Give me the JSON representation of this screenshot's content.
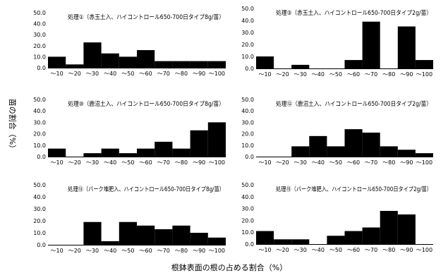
{
  "ylabel": "苗の割合（%）",
  "xlabel": "根鉢表面の根の占める割合（%）",
  "chart_data": [
    {
      "type": "bar",
      "title": "処理①（赤玉土入、ハイコントロール650-700日タイプ8g/苗）",
      "categories": [
        "～10",
        "～20",
        "～30",
        "～40",
        "～50",
        "～60",
        "～70",
        "～80",
        "～90",
        "～100"
      ],
      "values": [
        10,
        3,
        23,
        13,
        10,
        16,
        6,
        6,
        6,
        6
      ],
      "ylim": [
        0,
        50
      ],
      "yticks": [
        "0.0",
        "10.0",
        "20.0",
        "30.0",
        "40.0",
        "50.0"
      ]
    },
    {
      "type": "bar",
      "title": "処理③（赤玉土入、ハイコントロール650-700日タイプ2g/苗）",
      "categories": [
        "～10",
        "～20",
        "～30",
        "～40",
        "～50",
        "～60",
        "～70",
        "～80",
        "～90",
        "～100"
      ],
      "values": [
        10,
        0,
        3,
        0,
        0,
        7,
        39,
        0,
        35,
        7
      ],
      "ylim": [
        0,
        50
      ],
      "yticks": [
        "0.0",
        "10.0",
        "20.0",
        "30.0",
        "40.0",
        "50.0"
      ]
    },
    {
      "type": "bar",
      "title": "処理⑩（鹿沼土入、ハイコントロール650-700日タイプ8g/苗）",
      "categories": [
        "～10",
        "～20",
        "～30",
        "～40",
        "～50",
        "～60",
        "～70",
        "～80",
        "～90",
        "～100"
      ],
      "values": [
        7,
        0,
        3,
        7,
        3,
        7,
        13,
        7,
        23,
        30
      ],
      "ylim": [
        0,
        50
      ],
      "yticks": [
        "0.0",
        "10.0",
        "20.0",
        "30.0",
        "40.0",
        "50.0"
      ]
    },
    {
      "type": "bar",
      "title": "処理⑫（鹿沼土入、ハイコントロール650-700日タイプ2g/苗）",
      "categories": [
        "～10",
        "～20",
        "～30",
        "～40",
        "～50",
        "～60",
        "～70",
        "～80",
        "～90",
        "～100"
      ],
      "values": [
        0,
        0,
        9,
        18,
        9,
        24,
        21,
        9,
        6,
        3
      ],
      "ylim": [
        0,
        50
      ],
      "yticks": [
        "0.0",
        "10.0",
        "20.0",
        "30.0",
        "40.0",
        "50.0"
      ]
    },
    {
      "type": "bar",
      "title": "処理⑬（バーク堆肥入、ハイコントロール650-700日タイプ8g/苗）",
      "categories": [
        "～10",
        "～20",
        "～30",
        "～40",
        "～50",
        "～60",
        "～70",
        "～80",
        "～90",
        "～100"
      ],
      "values": [
        0,
        0,
        19,
        3,
        19,
        16,
        13,
        16,
        10,
        6
      ],
      "ylim": [
        0,
        50
      ],
      "yticks": [
        "0.0",
        "10.0",
        "20.0",
        "30.0",
        "40.0",
        "50.0"
      ]
    },
    {
      "type": "bar",
      "title": "処理⑮（バーク堆肥入、ハイコントロール650-700日タイプ2g/苗）",
      "categories": [
        "～10",
        "～20",
        "～30",
        "～40",
        "～50",
        "～60",
        "～70",
        "～80",
        "～90",
        "～100"
      ],
      "values": [
        11,
        4,
        4,
        0,
        7,
        11,
        14,
        28,
        25,
        0
      ],
      "ylim": [
        0,
        50
      ],
      "yticks": [
        "0.0",
        "10.0",
        "20.0",
        "30.0",
        "40.0",
        "50.0"
      ]
    }
  ]
}
